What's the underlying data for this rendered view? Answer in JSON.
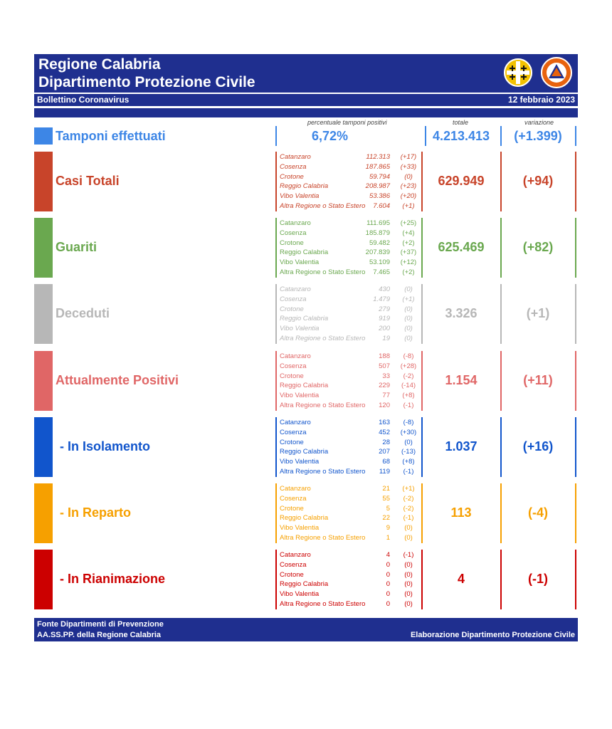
{
  "header": {
    "title_line1": "Regione Calabria",
    "title_line2": "Dipartimento Protezione Civile",
    "bulletin": "Bollettino Coronavirus",
    "date": "12 febbraio 2023"
  },
  "column_headers": {
    "positivity": "percentuale tamponi positivi",
    "total": "totale",
    "change": "variazione"
  },
  "tamponi": {
    "label": "Tamponi effettuati",
    "positivity": "6,72%",
    "total": "4.213.413",
    "change": "(+1.399)",
    "color": "#3d86e6"
  },
  "colors": {
    "header_blue": "#1f2f8f"
  },
  "sections": [
    {
      "label": "Casi Totali",
      "total": "629.949",
      "change": "(+94)",
      "color": "#c8442a",
      "italic": true,
      "rows": [
        {
          "province": "Catanzaro",
          "value": "112.313",
          "change": "(+17)"
        },
        {
          "province": "Cosenza",
          "value": "187.865",
          "change": "(+33)"
        },
        {
          "province": "Crotone",
          "value": "59.794",
          "change": "(0)"
        },
        {
          "province": "Reggio Calabria",
          "value": "208.987",
          "change": "(+23)"
        },
        {
          "province": "Vibo Valentia",
          "value": "53.386",
          "change": "(+20)"
        },
        {
          "province": "Altra Regione o Stato Estero",
          "value": "7.604",
          "change": "(+1)"
        }
      ]
    },
    {
      "label": "Guariti",
      "total": "625.469",
      "change": "(+82)",
      "color": "#6aa84f",
      "italic": false,
      "rows": [
        {
          "province": "Catanzaro",
          "value": "111.695",
          "change": "(+25)"
        },
        {
          "province": "Cosenza",
          "value": "185.879",
          "change": "(+4)"
        },
        {
          "province": "Crotone",
          "value": "59.482",
          "change": "(+2)"
        },
        {
          "province": "Reggio Calabria",
          "value": "207.839",
          "change": "(+37)"
        },
        {
          "province": "Vibo Valentia",
          "value": "53.109",
          "change": "(+12)"
        },
        {
          "province": "Altra Regione o Stato Estero",
          "value": "7.465",
          "change": "(+2)"
        }
      ]
    },
    {
      "label": "Deceduti",
      "total": "3.326",
      "change": "(+1)",
      "color": "#b7b7b7",
      "italic": true,
      "rows": [
        {
          "province": "Catanzaro",
          "value": "430",
          "change": "(0)"
        },
        {
          "province": "Cosenza",
          "value": "1.479",
          "change": "(+1)"
        },
        {
          "province": "Crotone",
          "value": "279",
          "change": "(0)"
        },
        {
          "province": "Reggio Calabria",
          "value": "919",
          "change": "(0)"
        },
        {
          "province": "Vibo Valentia",
          "value": "200",
          "change": "(0)"
        },
        {
          "province": "Altra Regione o Stato Estero",
          "value": "19",
          "change": "(0)"
        }
      ]
    },
    {
      "label": "Attualmente Positivi",
      "total": "1.154",
      "change": "(+11)",
      "color": "#e06666",
      "italic": false,
      "rows": [
        {
          "province": "Catanzaro",
          "value": "188",
          "change": "(-8)"
        },
        {
          "province": "Cosenza",
          "value": "507",
          "change": "(+28)"
        },
        {
          "province": "Crotone",
          "value": "33",
          "change": "(-2)"
        },
        {
          "province": "Reggio Calabria",
          "value": "229",
          "change": "(-14)"
        },
        {
          "province": "Vibo Valentia",
          "value": "77",
          "change": "(+8)"
        },
        {
          "province": "Altra Regione o Stato Estero",
          "value": "120",
          "change": "(-1)"
        }
      ]
    },
    {
      "label": "- In Isolamento",
      "total": "1.037",
      "change": "(+16)",
      "color": "#1155cc",
      "italic": false,
      "indent": true,
      "rows": [
        {
          "province": "Catanzaro",
          "value": "163",
          "change": "(-8)"
        },
        {
          "province": "Cosenza",
          "value": "452",
          "change": "(+30)"
        },
        {
          "province": "Crotone",
          "value": "28",
          "change": "(0)"
        },
        {
          "province": "Reggio Calabria",
          "value": "207",
          "change": "(-13)"
        },
        {
          "province": "Vibo Valentia",
          "value": "68",
          "change": "(+8)"
        },
        {
          "province": "Altra Regione o Stato Estero",
          "value": "119",
          "change": "(-1)"
        }
      ]
    },
    {
      "label": "- In Reparto",
      "total": "113",
      "change": "(-4)",
      "color": "#f6a000",
      "italic": false,
      "indent": true,
      "rows": [
        {
          "province": "Catanzaro",
          "value": "21",
          "change": "(+1)"
        },
        {
          "province": "Cosenza",
          "value": "55",
          "change": "(-2)"
        },
        {
          "province": "Crotone",
          "value": "5",
          "change": "(-2)"
        },
        {
          "province": "Reggio Calabria",
          "value": "22",
          "change": "(-1)"
        },
        {
          "province": "Vibo Valentia",
          "value": "9",
          "change": "(0)"
        },
        {
          "province": "Altra Regione o Stato Estero",
          "value": "1",
          "change": "(0)"
        }
      ]
    },
    {
      "label": "- In Rianimazione",
      "total": "4",
      "change": "(-1)",
      "color": "#cc0000",
      "italic": false,
      "indent": true,
      "rows": [
        {
          "province": "Catanzaro",
          "value": "4",
          "change": "(-1)"
        },
        {
          "province": "Cosenza",
          "value": "0",
          "change": "(0)"
        },
        {
          "province": "Crotone",
          "value": "0",
          "change": "(0)"
        },
        {
          "province": "Reggio Calabria",
          "value": "0",
          "change": "(0)"
        },
        {
          "province": "Vibo Valentia",
          "value": "0",
          "change": "(0)"
        },
        {
          "province": "Altra Regione o Stato Estero",
          "value": "0",
          "change": "(0)"
        }
      ]
    }
  ],
  "footer": {
    "line1": "Fonte Dipartimenti di Prevenzione",
    "line2": "AA.SS.PP.  della Regione Calabria",
    "credit": "Elaborazione Dipartimento Protezione Civile"
  }
}
